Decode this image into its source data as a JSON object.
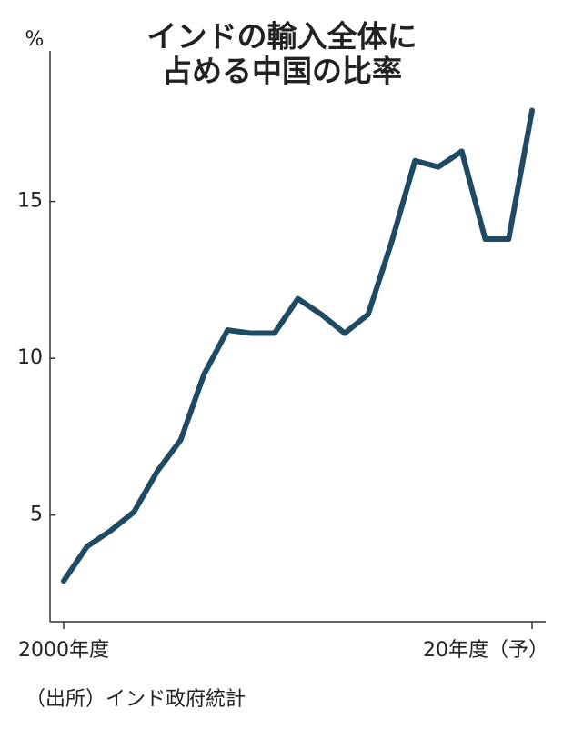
{
  "chart_data": {
    "type": "line",
    "title_lines": [
      "インドの輸入全体に",
      "占める中国の比率"
    ],
    "y_unit": "%",
    "source": "（出所）インド政府統計",
    "categories": [
      "2000年度",
      null,
      null,
      null,
      null,
      null,
      null,
      null,
      null,
      null,
      null,
      null,
      null,
      null,
      null,
      null,
      null,
      null,
      null,
      null,
      "20年度（予）"
    ],
    "series": [
      {
        "name": "中国の比率",
        "color": "#1e4a63",
        "values": [
          2.9,
          4.0,
          4.5,
          5.1,
          6.4,
          7.4,
          9.5,
          10.9,
          10.8,
          10.8,
          11.9,
          11.4,
          10.8,
          11.4,
          13.7,
          16.3,
          16.1,
          16.6,
          13.8,
          13.8,
          17.9
        ]
      }
    ],
    "ylim": [
      1.6,
      19.8
    ],
    "yticks": [
      5,
      10,
      15
    ]
  }
}
